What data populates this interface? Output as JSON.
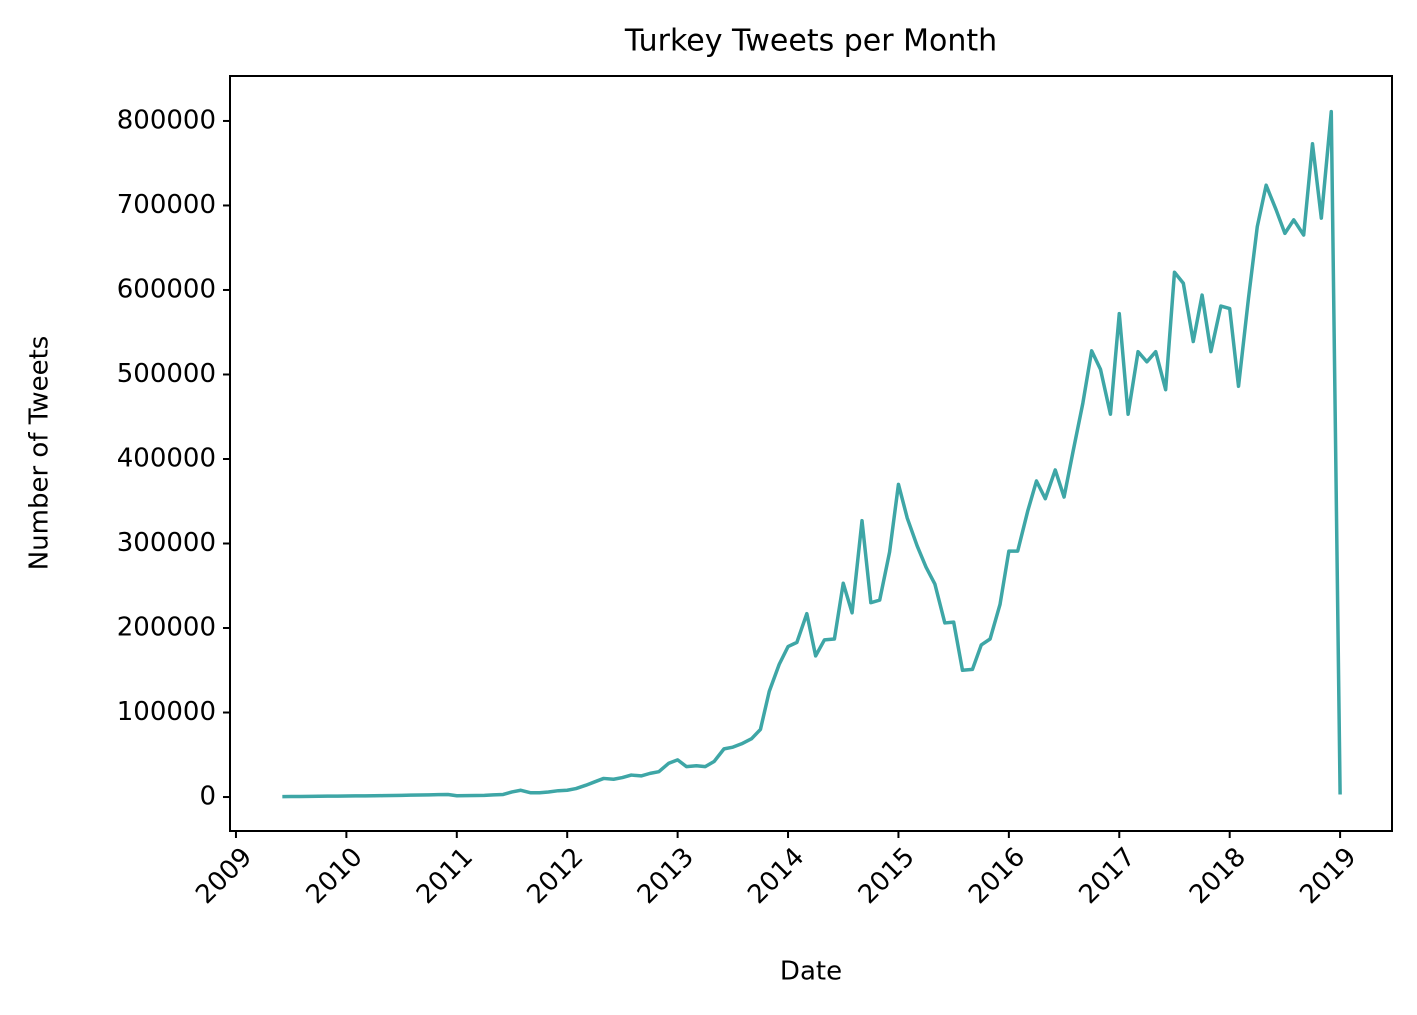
{
  "chart_data": {
    "type": "line",
    "title": "Turkey Tweets per Month",
    "x_label": "Date",
    "y_label": "Number of Tweets",
    "x": [
      2009.42,
      2009.5,
      2009.58,
      2009.67,
      2009.75,
      2009.83,
      2009.92,
      2010.0,
      2010.08,
      2010.17,
      2010.25,
      2010.33,
      2010.42,
      2010.5,
      2010.58,
      2010.67,
      2010.75,
      2010.83,
      2010.92,
      2011.0,
      2011.08,
      2011.17,
      2011.25,
      2011.33,
      2011.42,
      2011.5,
      2011.58,
      2011.67,
      2011.75,
      2011.83,
      2011.92,
      2012.0,
      2012.08,
      2012.17,
      2012.25,
      2012.33,
      2012.42,
      2012.5,
      2012.58,
      2012.67,
      2012.75,
      2012.83,
      2012.92,
      2013.0,
      2013.08,
      2013.17,
      2013.25,
      2013.33,
      2013.42,
      2013.5,
      2013.58,
      2013.67,
      2013.75,
      2013.83,
      2013.92,
      2014.0,
      2014.08,
      2014.17,
      2014.25,
      2014.33,
      2014.42,
      2014.5,
      2014.58,
      2014.67,
      2014.75,
      2014.83,
      2014.92,
      2015.0,
      2015.08,
      2015.17,
      2015.25,
      2015.33,
      2015.42,
      2015.5,
      2015.58,
      2015.67,
      2015.75,
      2015.83,
      2015.92,
      2016.0,
      2016.08,
      2016.17,
      2016.25,
      2016.33,
      2016.42,
      2016.5,
      2016.58,
      2016.67,
      2016.75,
      2016.83,
      2016.92,
      2017.0,
      2017.08,
      2017.17,
      2017.25,
      2017.33,
      2017.42,
      2017.5,
      2017.58,
      2017.67,
      2017.75,
      2017.83,
      2017.92,
      2018.0,
      2018.08,
      2018.17,
      2018.25,
      2018.33,
      2018.42,
      2018.5,
      2018.58,
      2018.67,
      2018.75,
      2018.83,
      2018.92,
      2019.0
    ],
    "series": [
      {
        "name": "Tweets",
        "color": "#3ea6a6",
        "values": [
          500,
          600,
          700,
          800,
          900,
          1000,
          1100,
          1200,
          1300,
          1400,
          1500,
          1600,
          1800,
          2000,
          2200,
          2400,
          2600,
          2800,
          3000,
          1500,
          1700,
          1800,
          2000,
          2500,
          3000,
          6000,
          8000,
          5000,
          5000,
          6000,
          7500,
          8000,
          10000,
          14000,
          18000,
          22000,
          21000,
          23000,
          26000,
          25000,
          28000,
          30000,
          40000,
          44000,
          36000,
          37000,
          36000,
          42000,
          57000,
          59000,
          63000,
          69000,
          80000,
          125000,
          157000,
          178000,
          183000,
          217000,
          167000,
          186000,
          187000,
          253000,
          218000,
          327000,
          230000,
          233000,
          290000,
          370000,
          330000,
          297000,
          272000,
          252000,
          206000,
          207000,
          150000,
          151000,
          180000,
          187000,
          228000,
          291000,
          291000,
          338000,
          374000,
          353000,
          387000,
          355000,
          408000,
          466000,
          528000,
          506000,
          453000,
          572000,
          453000,
          527000,
          515000,
          527000,
          482000,
          621000,
          608000,
          539000,
          594000,
          527000,
          581000,
          578000,
          486000,
          590000,
          675000,
          724000,
          695000,
          667000,
          683000,
          665000,
          773000,
          685000,
          811000,
          3000
        ]
      }
    ],
    "xlim": [
      2008.946,
      2019.47
    ],
    "xticks": [
      2009,
      2010,
      2011,
      2012,
      2013,
      2014,
      2015,
      2016,
      2017,
      2018,
      2019
    ],
    "ylim": [
      -40200,
      853200
    ],
    "yticks": [
      0,
      100000,
      200000,
      300000,
      400000,
      500000,
      600000,
      700000,
      800000
    ]
  }
}
